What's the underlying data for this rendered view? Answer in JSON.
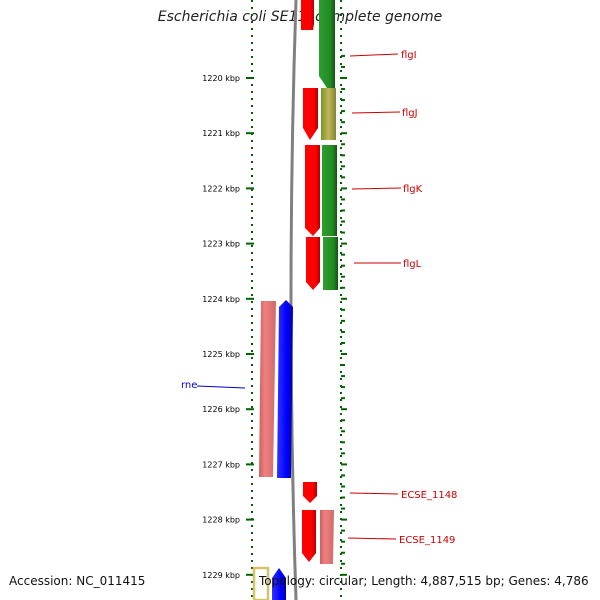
{
  "title": "Escherichia coli SE11, complete genome",
  "tick_labels": [
    {
      "kbp": 1220,
      "label": "1220 kbp"
    },
    {
      "kbp": 1221,
      "label": "1221 kbp"
    },
    {
      "kbp": 1222,
      "label": "1222 kbp"
    },
    {
      "kbp": 1223,
      "label": "1223 kbp"
    },
    {
      "kbp": 1224,
      "label": "1224 kbp"
    },
    {
      "kbp": 1225,
      "label": "1225 kbp"
    },
    {
      "kbp": 1226,
      "label": "1226 kbp"
    },
    {
      "kbp": 1227,
      "label": "1227 kbp"
    },
    {
      "kbp": 1228,
      "label": "1228 kbp"
    },
    {
      "kbp": 1229,
      "label": "1229 kbp"
    }
  ],
  "gene_labels": [
    {
      "name": "flgI",
      "color": "#cc0000"
    },
    {
      "name": "flgJ",
      "color": "#cc0000"
    },
    {
      "name": "flgK",
      "color": "#cc0000"
    },
    {
      "name": "flgL",
      "color": "#cc0000"
    },
    {
      "name": "rne",
      "color": "#0000cc"
    },
    {
      "name": "ECSE_1148",
      "color": "#cc0000"
    },
    {
      "name": "ECSE_1149",
      "color": "#cc0000"
    }
  ],
  "colors": {
    "forward_cds": "#ff0000",
    "forward_feature": "#228b22",
    "reverse_cds": "#0000ff",
    "reverse_feature": "#f08080",
    "tick_marks": "#006400",
    "backbone": "#808080",
    "other_feature": "#d4c36a"
  },
  "footer": {
    "accession": "Accession: NC_011415",
    "summary": "Topology: circular; Length: 4,887,515 bp; Genes: 4,786"
  }
}
